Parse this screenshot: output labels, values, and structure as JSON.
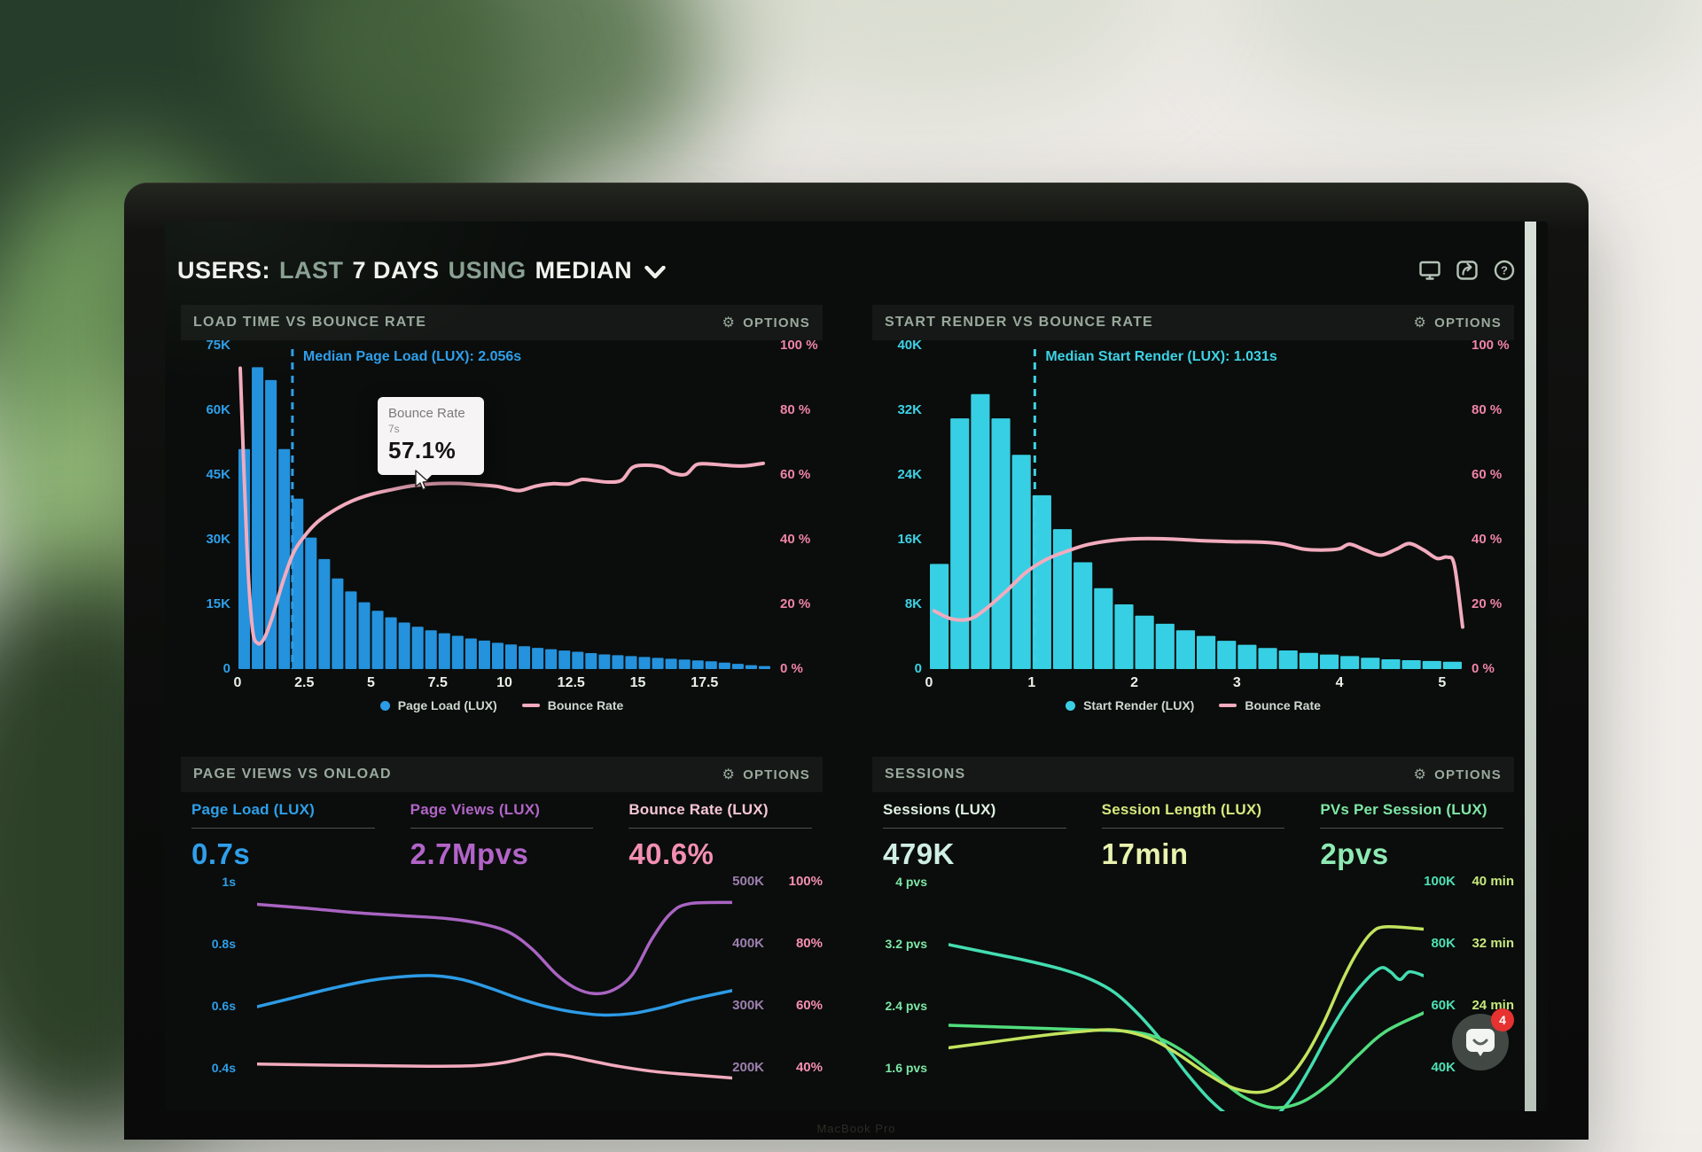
{
  "header": {
    "title_parts": [
      {
        "text": "USERS:",
        "strong": true
      },
      {
        "text": "LAST",
        "strong": false
      },
      {
        "text": "7 DAYS",
        "strong": true
      },
      {
        "text": "USING",
        "strong": false
      },
      {
        "text": "MEDIAN",
        "strong": true
      }
    ],
    "icons": [
      "display-icon",
      "share-icon",
      "help-icon"
    ]
  },
  "ui": {
    "options_gear": "⚙"
  },
  "device": {
    "label": "MacBook Pro"
  },
  "chat_widget": {
    "badge": "4"
  },
  "chart_data": [
    {
      "id": "load_time_vs_bounce_rate",
      "type": "bar+line",
      "title": "LOAD TIME VS BOUNCE RATE",
      "options_label": "OPTIONS",
      "x_unit": "seconds",
      "x_max": 20,
      "x_ticks": [
        "0",
        "2.5",
        "5",
        "7.5",
        "10",
        "12.5",
        "15",
        "17.5"
      ],
      "x_tick_values": [
        0,
        2.5,
        5,
        7.5,
        10,
        12.5,
        15,
        17.5
      ],
      "left_axis": {
        "color": "#2f9fea",
        "max": 75,
        "ticks": [
          "75K",
          "60K",
          "45K",
          "30K",
          "15K",
          "0"
        ]
      },
      "right_axis": {
        "color": "#f084a8",
        "max": 100,
        "ticks": [
          "100 %",
          "80 %",
          "60 %",
          "40 %",
          "20 %",
          "0 %"
        ]
      },
      "median": {
        "label": "Median Page Load (LUX): 2.056s",
        "x": 2.056,
        "color": "#2f9fea"
      },
      "bars": {
        "name": "Page Load (LUX)",
        "color": "#2492dd",
        "x_start": 0,
        "x_step": 0.5,
        "values_k": [
          51,
          70,
          67,
          51,
          39.5,
          30.5,
          25.5,
          21,
          18,
          15.5,
          13.5,
          12,
          10.8,
          9.8,
          9,
          8.3,
          7.7,
          7.1,
          6.6,
          6.1,
          5.7,
          5.3,
          4.9,
          4.6,
          4.3,
          4.0,
          3.7,
          3.4,
          3.2,
          3.0,
          2.8,
          2.6,
          2.4,
          2.2,
          2.0,
          1.8,
          1.5,
          1.2,
          0.9,
          0.7
        ]
      },
      "line": {
        "name": "Bounce Rate",
        "color": "#f2abbe",
        "points_pct": [
          [
            0.1,
            93
          ],
          [
            0.35,
            38
          ],
          [
            0.55,
            13
          ],
          [
            0.75,
            8
          ],
          [
            1.0,
            9.5
          ],
          [
            1.3,
            16
          ],
          [
            1.7,
            27
          ],
          [
            2.1,
            36
          ],
          [
            2.5,
            41
          ],
          [
            3.0,
            45.5
          ],
          [
            3.6,
            49
          ],
          [
            4.3,
            52
          ],
          [
            5.0,
            54
          ],
          [
            5.8,
            55.5
          ],
          [
            6.5,
            56.6
          ],
          [
            7.0,
            57.1
          ],
          [
            7.6,
            57.4
          ],
          [
            8.3,
            57.4
          ],
          [
            9.0,
            57.0
          ],
          [
            9.7,
            56.5
          ],
          [
            10.2,
            55.6
          ],
          [
            10.6,
            55.2
          ],
          [
            11.2,
            56.6
          ],
          [
            11.8,
            57.3
          ],
          [
            12.4,
            57.2
          ],
          [
            12.9,
            58.6
          ],
          [
            13.4,
            58.2
          ],
          [
            13.9,
            57.8
          ],
          [
            14.4,
            58.4
          ],
          [
            14.8,
            62.3
          ],
          [
            15.3,
            63.0
          ],
          [
            15.9,
            62.4
          ],
          [
            16.3,
            60.6
          ],
          [
            16.8,
            60.2
          ],
          [
            17.2,
            63.2
          ],
          [
            17.7,
            63.4
          ],
          [
            18.3,
            63.0
          ],
          [
            19.0,
            62.8
          ],
          [
            19.7,
            63.6
          ]
        ]
      },
      "legend": [
        {
          "marker": "dot",
          "color": "#2d9be6",
          "label": "Page Load (LUX)"
        },
        {
          "marker": "line",
          "color": "#f2abbe",
          "label": "Bounce Rate"
        }
      ],
      "tooltip": {
        "title": "Bounce Rate",
        "subtitle": "7s",
        "value": "57.1%",
        "anchor_x": 7
      }
    },
    {
      "id": "start_render_vs_bounce_rate",
      "type": "bar+line",
      "title": "START RENDER VS BOUNCE RATE",
      "options_label": "OPTIONS",
      "x_unit": "seconds",
      "x_max": 5.2,
      "x_ticks": [
        "0",
        "1",
        "2",
        "3",
        "4",
        "5"
      ],
      "x_tick_values": [
        0,
        1,
        2,
        3,
        4,
        5
      ],
      "left_axis": {
        "color": "#3dd2e6",
        "max": 40,
        "ticks": [
          "40K",
          "32K",
          "24K",
          "16K",
          "8K",
          "0"
        ]
      },
      "right_axis": {
        "color": "#f084a8",
        "max": 100,
        "ticks": [
          "100 %",
          "80 %",
          "60 %",
          "40 %",
          "20 %",
          "0 %"
        ]
      },
      "median": {
        "label": "Median Start Render (LUX): 1.031s",
        "x": 1.031,
        "color": "#3dd2e6"
      },
      "bars": {
        "name": "Start Render (LUX)",
        "color": "#37cfe3",
        "x_start": 0,
        "x_step": 0.2,
        "values_k": [
          13,
          31,
          34,
          31,
          26.5,
          21.5,
          17.3,
          13.2,
          10,
          8,
          6.6,
          5.6,
          4.8,
          4.1,
          3.5,
          3.0,
          2.6,
          2.3,
          2.0,
          1.8,
          1.6,
          1.4,
          1.2,
          1.1,
          1.0,
          0.9
        ]
      },
      "line": {
        "name": "Bounce Rate",
        "color": "#f2abbe",
        "points_pct": [
          [
            0.05,
            18
          ],
          [
            0.22,
            15.5
          ],
          [
            0.4,
            15.5
          ],
          [
            0.55,
            18.5
          ],
          [
            0.75,
            24
          ],
          [
            0.95,
            30
          ],
          [
            1.15,
            34
          ],
          [
            1.35,
            36.5
          ],
          [
            1.55,
            38.5
          ],
          [
            1.8,
            39.8
          ],
          [
            2.05,
            40.3
          ],
          [
            2.35,
            40.2
          ],
          [
            2.65,
            39.7
          ],
          [
            2.95,
            39.4
          ],
          [
            3.25,
            39.2
          ],
          [
            3.45,
            38.6
          ],
          [
            3.65,
            37.1
          ],
          [
            3.85,
            36.8
          ],
          [
            4.0,
            37.2
          ],
          [
            4.1,
            38.6
          ],
          [
            4.25,
            36.8
          ],
          [
            4.4,
            35.2
          ],
          [
            4.55,
            37.0
          ],
          [
            4.68,
            38.8
          ],
          [
            4.82,
            36.8
          ],
          [
            4.95,
            34.2
          ],
          [
            5.05,
            34.6
          ],
          [
            5.12,
            32.0
          ],
          [
            5.2,
            13
          ]
        ]
      },
      "legend": [
        {
          "marker": "dot",
          "color": "#3ad0e4",
          "label": "Start Render (LUX)"
        },
        {
          "marker": "line",
          "color": "#f2abbe",
          "label": "Bounce Rate"
        }
      ]
    },
    {
      "id": "page_views_vs_onload",
      "type": "line",
      "title": "PAGE VIEWS VS ONLOAD",
      "options_label": "OPTIONS",
      "metrics": [
        {
          "label": "Page Load (LUX)",
          "value": "0.7s",
          "label_color": "#2f9fea",
          "value_color": "#2f9fea"
        },
        {
          "label": "Page Views (LUX)",
          "value": "2.7Mpvs",
          "label_color": "#b264c8",
          "value_color": "#b264c8"
        },
        {
          "label": "Bounce Rate (LUX)",
          "value": "40.6%",
          "label_color": "#f6c6d6",
          "value_color": "#f48fb4"
        }
      ],
      "left_axis": {
        "color": "#2f9fea",
        "unit": "seconds",
        "ticks": [
          "1s",
          "0.8s",
          "0.6s",
          "0.4s"
        ],
        "values": [
          1,
          0.8,
          0.6,
          0.4
        ]
      },
      "right_axis_cols": [
        {
          "color": "#9d7fb0",
          "ticks": [
            "500K",
            "400K",
            "300K",
            "200K"
          ],
          "values": [
            500,
            400,
            300,
            200
          ]
        },
        {
          "color": "#f58fb2",
          "ticks": [
            "100%",
            "80%",
            "60%",
            "40%"
          ],
          "values": [
            100,
            80,
            60,
            40
          ]
        }
      ],
      "series": [
        {
          "name": "Page Load (LUX)",
          "axis": "seconds",
          "color": "#2d9be6",
          "scale": [
            1.0,
            0.4
          ],
          "points": [
            [
              0,
              0.6
            ],
            [
              8,
              0.63
            ],
            [
              16,
              0.66
            ],
            [
              24,
              0.685
            ],
            [
              31,
              0.697
            ],
            [
              37,
              0.7
            ],
            [
              43,
              0.688
            ],
            [
              49,
              0.66
            ],
            [
              55,
              0.627
            ],
            [
              61,
              0.6
            ],
            [
              67,
              0.582
            ],
            [
              73,
              0.573
            ],
            [
              79,
              0.578
            ],
            [
              85,
              0.597
            ],
            [
              91,
              0.622
            ],
            [
              100,
              0.652
            ]
          ]
        },
        {
          "name": "Page Views (LUX)",
          "axis": "K",
          "color": "#a964c2",
          "scale": [
            500,
            200
          ],
          "points": [
            [
              0,
              465
            ],
            [
              10,
              459
            ],
            [
              20,
              452
            ],
            [
              30,
              447
            ],
            [
              40,
              442
            ],
            [
              47,
              434
            ],
            [
              53,
              420
            ],
            [
              58,
              392
            ],
            [
              63,
              352
            ],
            [
              67,
              330
            ],
            [
              71,
              321
            ],
            [
              75,
              327
            ],
            [
              79,
              352
            ],
            [
              83,
              408
            ],
            [
              87,
              450
            ],
            [
              91,
              466
            ],
            [
              100,
              468
            ]
          ]
        },
        {
          "name": "Bounce Rate (LUX)",
          "axis": "percent",
          "color": "#f2abbe",
          "scale": [
            100,
            40
          ],
          "points": [
            [
              0,
              41.5
            ],
            [
              12,
              41.2
            ],
            [
              24,
              41.0
            ],
            [
              36,
              40.8
            ],
            [
              46,
              41.0
            ],
            [
              52,
              42.0
            ],
            [
              57,
              43.6
            ],
            [
              61,
              44.7
            ],
            [
              65,
              44.2
            ],
            [
              70,
              42.6
            ],
            [
              76,
              40.8
            ],
            [
              83,
              39.2
            ],
            [
              90,
              38.2
            ],
            [
              100,
              37.0
            ]
          ]
        }
      ]
    },
    {
      "id": "sessions",
      "type": "line",
      "title": "SESSIONS",
      "options_label": "OPTIONS",
      "metrics": [
        {
          "label": "Sessions (LUX)",
          "value": "479K",
          "label_color": "#dff0e2",
          "value_color": "#cfeee4"
        },
        {
          "label": "Session Length (LUX)",
          "value": "17min",
          "label_color": "#d6e97e",
          "value_color": "#e9f2ae"
        },
        {
          "label": "PVs Per Session (LUX)",
          "value": "2pvs",
          "label_color": "#7fe7a7",
          "value_color": "#8eeab3"
        }
      ],
      "left_axis": {
        "color": "#7de8a6",
        "unit": "pvs",
        "ticks": [
          "4 pvs",
          "3.2 pvs",
          "2.4 pvs",
          "1.6 pvs"
        ],
        "values": [
          4,
          3.2,
          2.4,
          1.6
        ]
      },
      "right_axis_cols": [
        {
          "color": "#4fe0b4",
          "ticks": [
            "100K",
            "80K",
            "60K",
            "40K"
          ],
          "values": [
            100,
            80,
            60,
            40
          ]
        },
        {
          "color": "#c7e87c",
          "ticks": [
            "40 min",
            "32 min",
            "24 min",
            ""
          ],
          "values": [
            40,
            32,
            24,
            16
          ]
        }
      ],
      "series": [
        {
          "name": "PVs Per Session (LUX)",
          "axis": "pvs",
          "color": "#43ddb1",
          "scale": [
            4,
            1.6
          ],
          "points": [
            [
              0,
              3.2
            ],
            [
              8,
              3.1
            ],
            [
              16,
              3.0
            ],
            [
              24,
              2.88
            ],
            [
              30,
              2.75
            ],
            [
              35,
              2.58
            ],
            [
              40,
              2.3
            ],
            [
              45,
              1.95
            ],
            [
              50,
              1.55
            ],
            [
              55,
              1.2
            ],
            [
              60,
              0.95
            ],
            [
              64,
              0.85
            ],
            [
              68,
              0.95
            ],
            [
              72,
              1.2
            ],
            [
              76,
              1.6
            ],
            [
              80,
              2.05
            ],
            [
              84,
              2.45
            ],
            [
              88,
              2.75
            ],
            [
              91,
              2.9
            ],
            [
              93,
              2.85
            ],
            [
              95,
              2.75
            ],
            [
              97,
              2.85
            ],
            [
              100,
              2.8
            ]
          ]
        },
        {
          "name": "Sessions (LUX)",
          "axis": "K",
          "color": "#52dd7e",
          "scale": [
            100,
            40
          ],
          "points": [
            [
              0,
              54
            ],
            [
              10,
              53.5
            ],
            [
              20,
              53
            ],
            [
              30,
              52.5
            ],
            [
              38,
              52
            ],
            [
              44,
              50
            ],
            [
              50,
              45
            ],
            [
              56,
              38
            ],
            [
              62,
              31
            ],
            [
              68,
              27.5
            ],
            [
              74,
              29
            ],
            [
              80,
              35
            ],
            [
              86,
              44
            ],
            [
              92,
              52
            ],
            [
              100,
              58
            ]
          ]
        },
        {
          "name": "Session Length (LUX)",
          "axis": "min",
          "color": "#c3e35e",
          "scale": [
            40,
            16
          ],
          "points": [
            [
              0,
              18.7
            ],
            [
              10,
              19.5
            ],
            [
              20,
              20.3
            ],
            [
              28,
              20.8
            ],
            [
              35,
              21.0
            ],
            [
              42,
              20.0
            ],
            [
              48,
              18.0
            ],
            [
              54,
              15.5
            ],
            [
              60,
              13.5
            ],
            [
              66,
              13.0
            ],
            [
              71,
              14.5
            ],
            [
              75,
              17.5
            ],
            [
              79,
              22.0
            ],
            [
              83,
              27.5
            ],
            [
              86,
              31.0
            ],
            [
              89,
              33.5
            ],
            [
              92,
              34.3
            ],
            [
              100,
              34.0
            ]
          ]
        }
      ]
    }
  ]
}
